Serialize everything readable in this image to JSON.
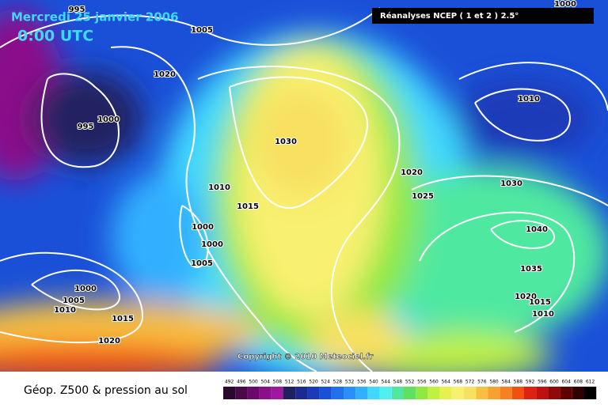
{
  "header": {
    "date": "Mercredi 25 janvier 2006",
    "time": "0:00 UTC",
    "source": "Réanalyses NCEP ( 1 et 2 ) 2.5°"
  },
  "isobar_labels": [
    "995",
    "1005",
    "1020",
    "995",
    "1000",
    "1030",
    "1010",
    "1015",
    "1000",
    "1000",
    "1005",
    "1000",
    "1005",
    "1010",
    "1015",
    "1020",
    "1020",
    "1025",
    "1030",
    "1040",
    "1035",
    "1020",
    "1015",
    "1010",
    "1010",
    "1000"
  ],
  "copyright": "Copyright © 2010 Meteociel.fr",
  "legend": {
    "title": "Géop. Z500 & pression au sol",
    "values": [
      492,
      496,
      500,
      504,
      508,
      512,
      516,
      520,
      524,
      528,
      532,
      536,
      540,
      544,
      548,
      552,
      556,
      560,
      564,
      568,
      572,
      576,
      580,
      584,
      588,
      592,
      596,
      600,
      604,
      608,
      612
    ],
    "colors": [
      "#2a0a2a",
      "#4a0a4a",
      "#6a0a6a",
      "#8a108a",
      "#a018a0",
      "#202060",
      "#1a2a90",
      "#1a3ab8",
      "#1a50d8",
      "#2070f0",
      "#2a90f8",
      "#30b0ff",
      "#40d8ff",
      "#50f0f0",
      "#50e8a0",
      "#60e060",
      "#90e840",
      "#c0f040",
      "#e8f050",
      "#f8f070",
      "#f8e060",
      "#f8c040",
      "#f8a030",
      "#f88020",
      "#f05010",
      "#e02010",
      "#c01010",
      "#900808",
      "#600000",
      "#300000",
      "#000000"
    ]
  }
}
